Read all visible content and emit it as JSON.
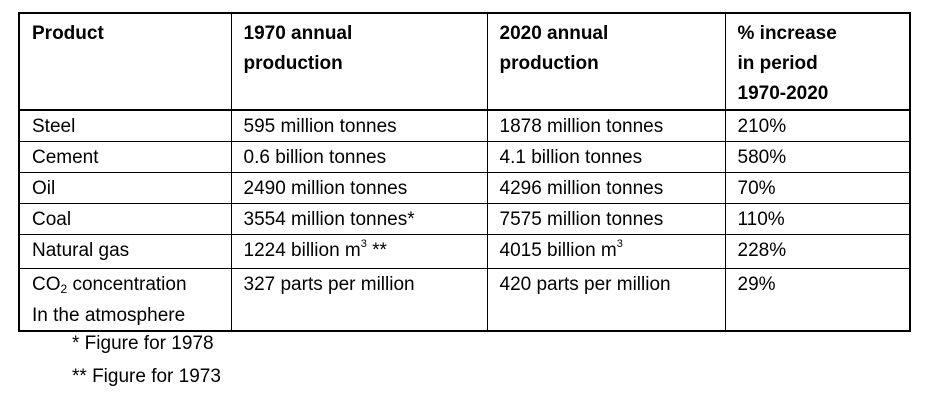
{
  "table": {
    "headers": [
      "Product",
      "1970 annual production",
      "2020 annual production",
      "% increase in period 1970-2020"
    ],
    "header_lines": [
      [
        "Product"
      ],
      [
        "1970 annual",
        "production"
      ],
      [
        "2020 annual",
        "production"
      ],
      [
        "% increase",
        "in period",
        "1970-2020"
      ]
    ],
    "rows": [
      {
        "product": "Steel",
        "y1970": "595 million tonnes",
        "y2020": "1878 million tonnes",
        "increase": "210%"
      },
      {
        "product": "Cement",
        "y1970": "0.6 billion tonnes",
        "y2020": "4.1 billion tonnes",
        "increase": "580%"
      },
      {
        "product": "Oil",
        "y1970": "2490 million tonnes",
        "y2020": "4296 million tonnes",
        "increase": "70%"
      },
      {
        "product": "Coal",
        "y1970": "3554 million tonnes*",
        "y2020": "7575 million tonnes",
        "increase": "110%"
      },
      {
        "product": "Natural gas",
        "y1970": "1224 billion m³ **",
        "y2020": "4015 billion m³",
        "increase": "228%"
      },
      {
        "product": "CO₂ concentration In the atmosphere",
        "y1970": "327 parts per million",
        "y2020": "420 parts per million",
        "increase": "29%"
      }
    ],
    "rich": {
      "gas_1970": [
        "1224 billion m",
        "3",
        " **"
      ],
      "gas_2020": [
        "4015 billion m",
        "3"
      ],
      "co2": [
        "CO",
        "2",
        " concentration",
        "In the atmosphere"
      ]
    }
  },
  "footnotes": [
    "* Figure for 1978",
    "** Figure for 1973"
  ]
}
